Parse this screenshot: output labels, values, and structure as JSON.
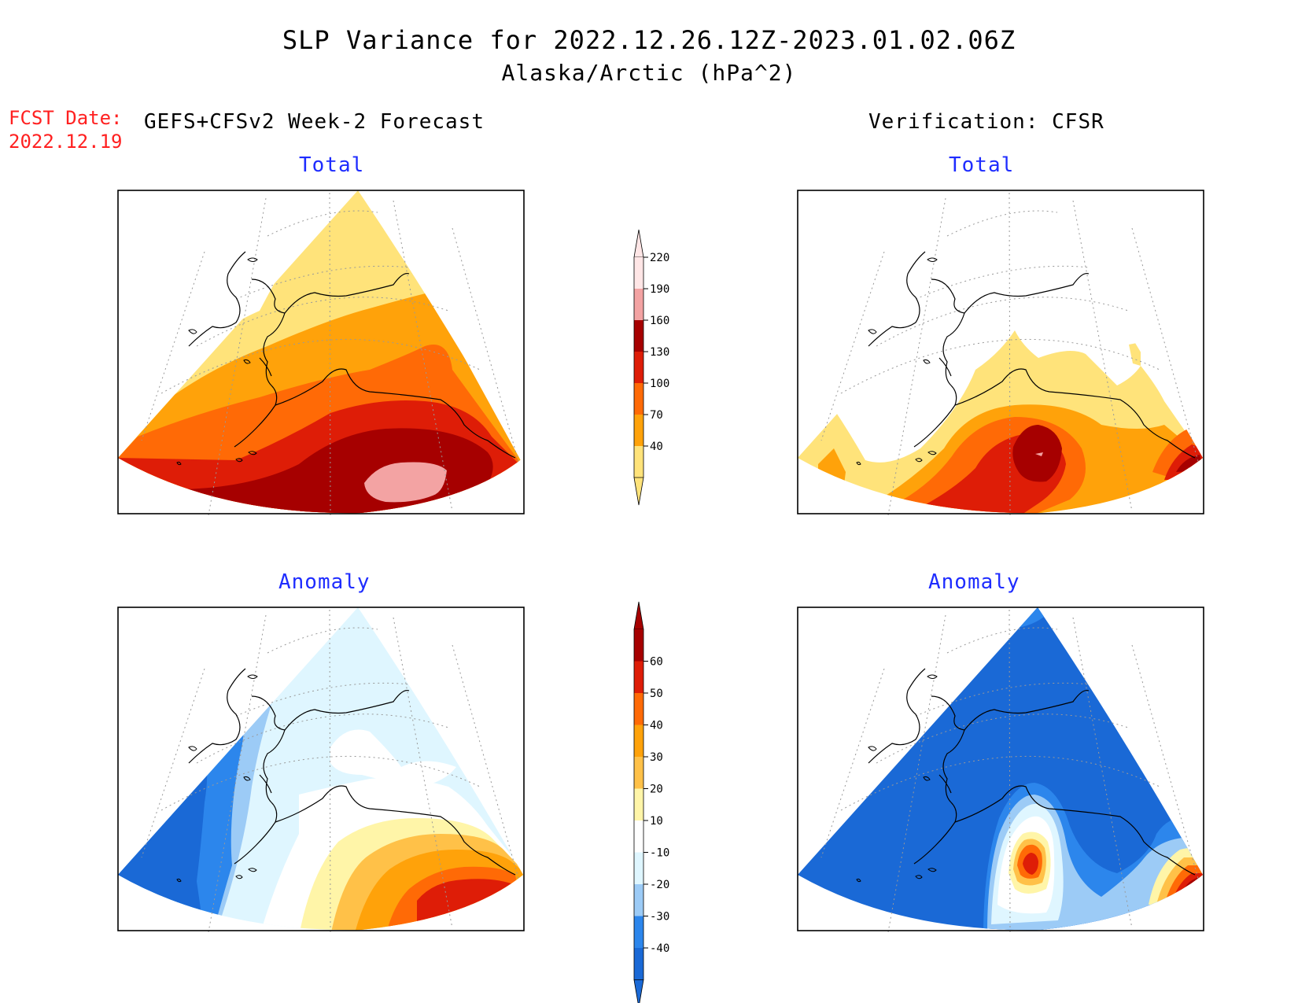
{
  "title": {
    "line1": "SLP Variance for 2022.12.26.12Z-2023.01.02.06Z",
    "line2": "Alaska/Arctic (hPa^2)"
  },
  "forecast_date": {
    "label": "FCST Date:",
    "value": "2022.12.19"
  },
  "columns": {
    "left": "GEFS+CFSv2 Week-2 Forecast",
    "right": "Verification: CFSR"
  },
  "panels": {
    "forecast_total": "Total",
    "verification_total": "Total",
    "forecast_anomaly": "Anomaly",
    "verification_anomaly": "Anomaly"
  },
  "colorbars": {
    "total": {
      "ticks": [
        "40",
        "70",
        "100",
        "130",
        "160",
        "190",
        "220"
      ],
      "colors": [
        "#ffe37a",
        "#ffa20a",
        "#ff6a06",
        "#de1d07",
        "#a60000",
        "#f3a3a3",
        "#ffe6e6"
      ]
    },
    "anomaly": {
      "ticks": [
        "-40",
        "-30",
        "-20",
        "-10",
        "10",
        "20",
        "30",
        "40",
        "50",
        "60"
      ],
      "colors": [
        "#1a69d6",
        "#2c86ec",
        "#9ccbf6",
        "#dff6ff",
        "#ffffff",
        "#fff5a8",
        "#ffc148",
        "#ffa20a",
        "#ff6a06",
        "#de1d07",
        "#a60000"
      ]
    }
  }
}
